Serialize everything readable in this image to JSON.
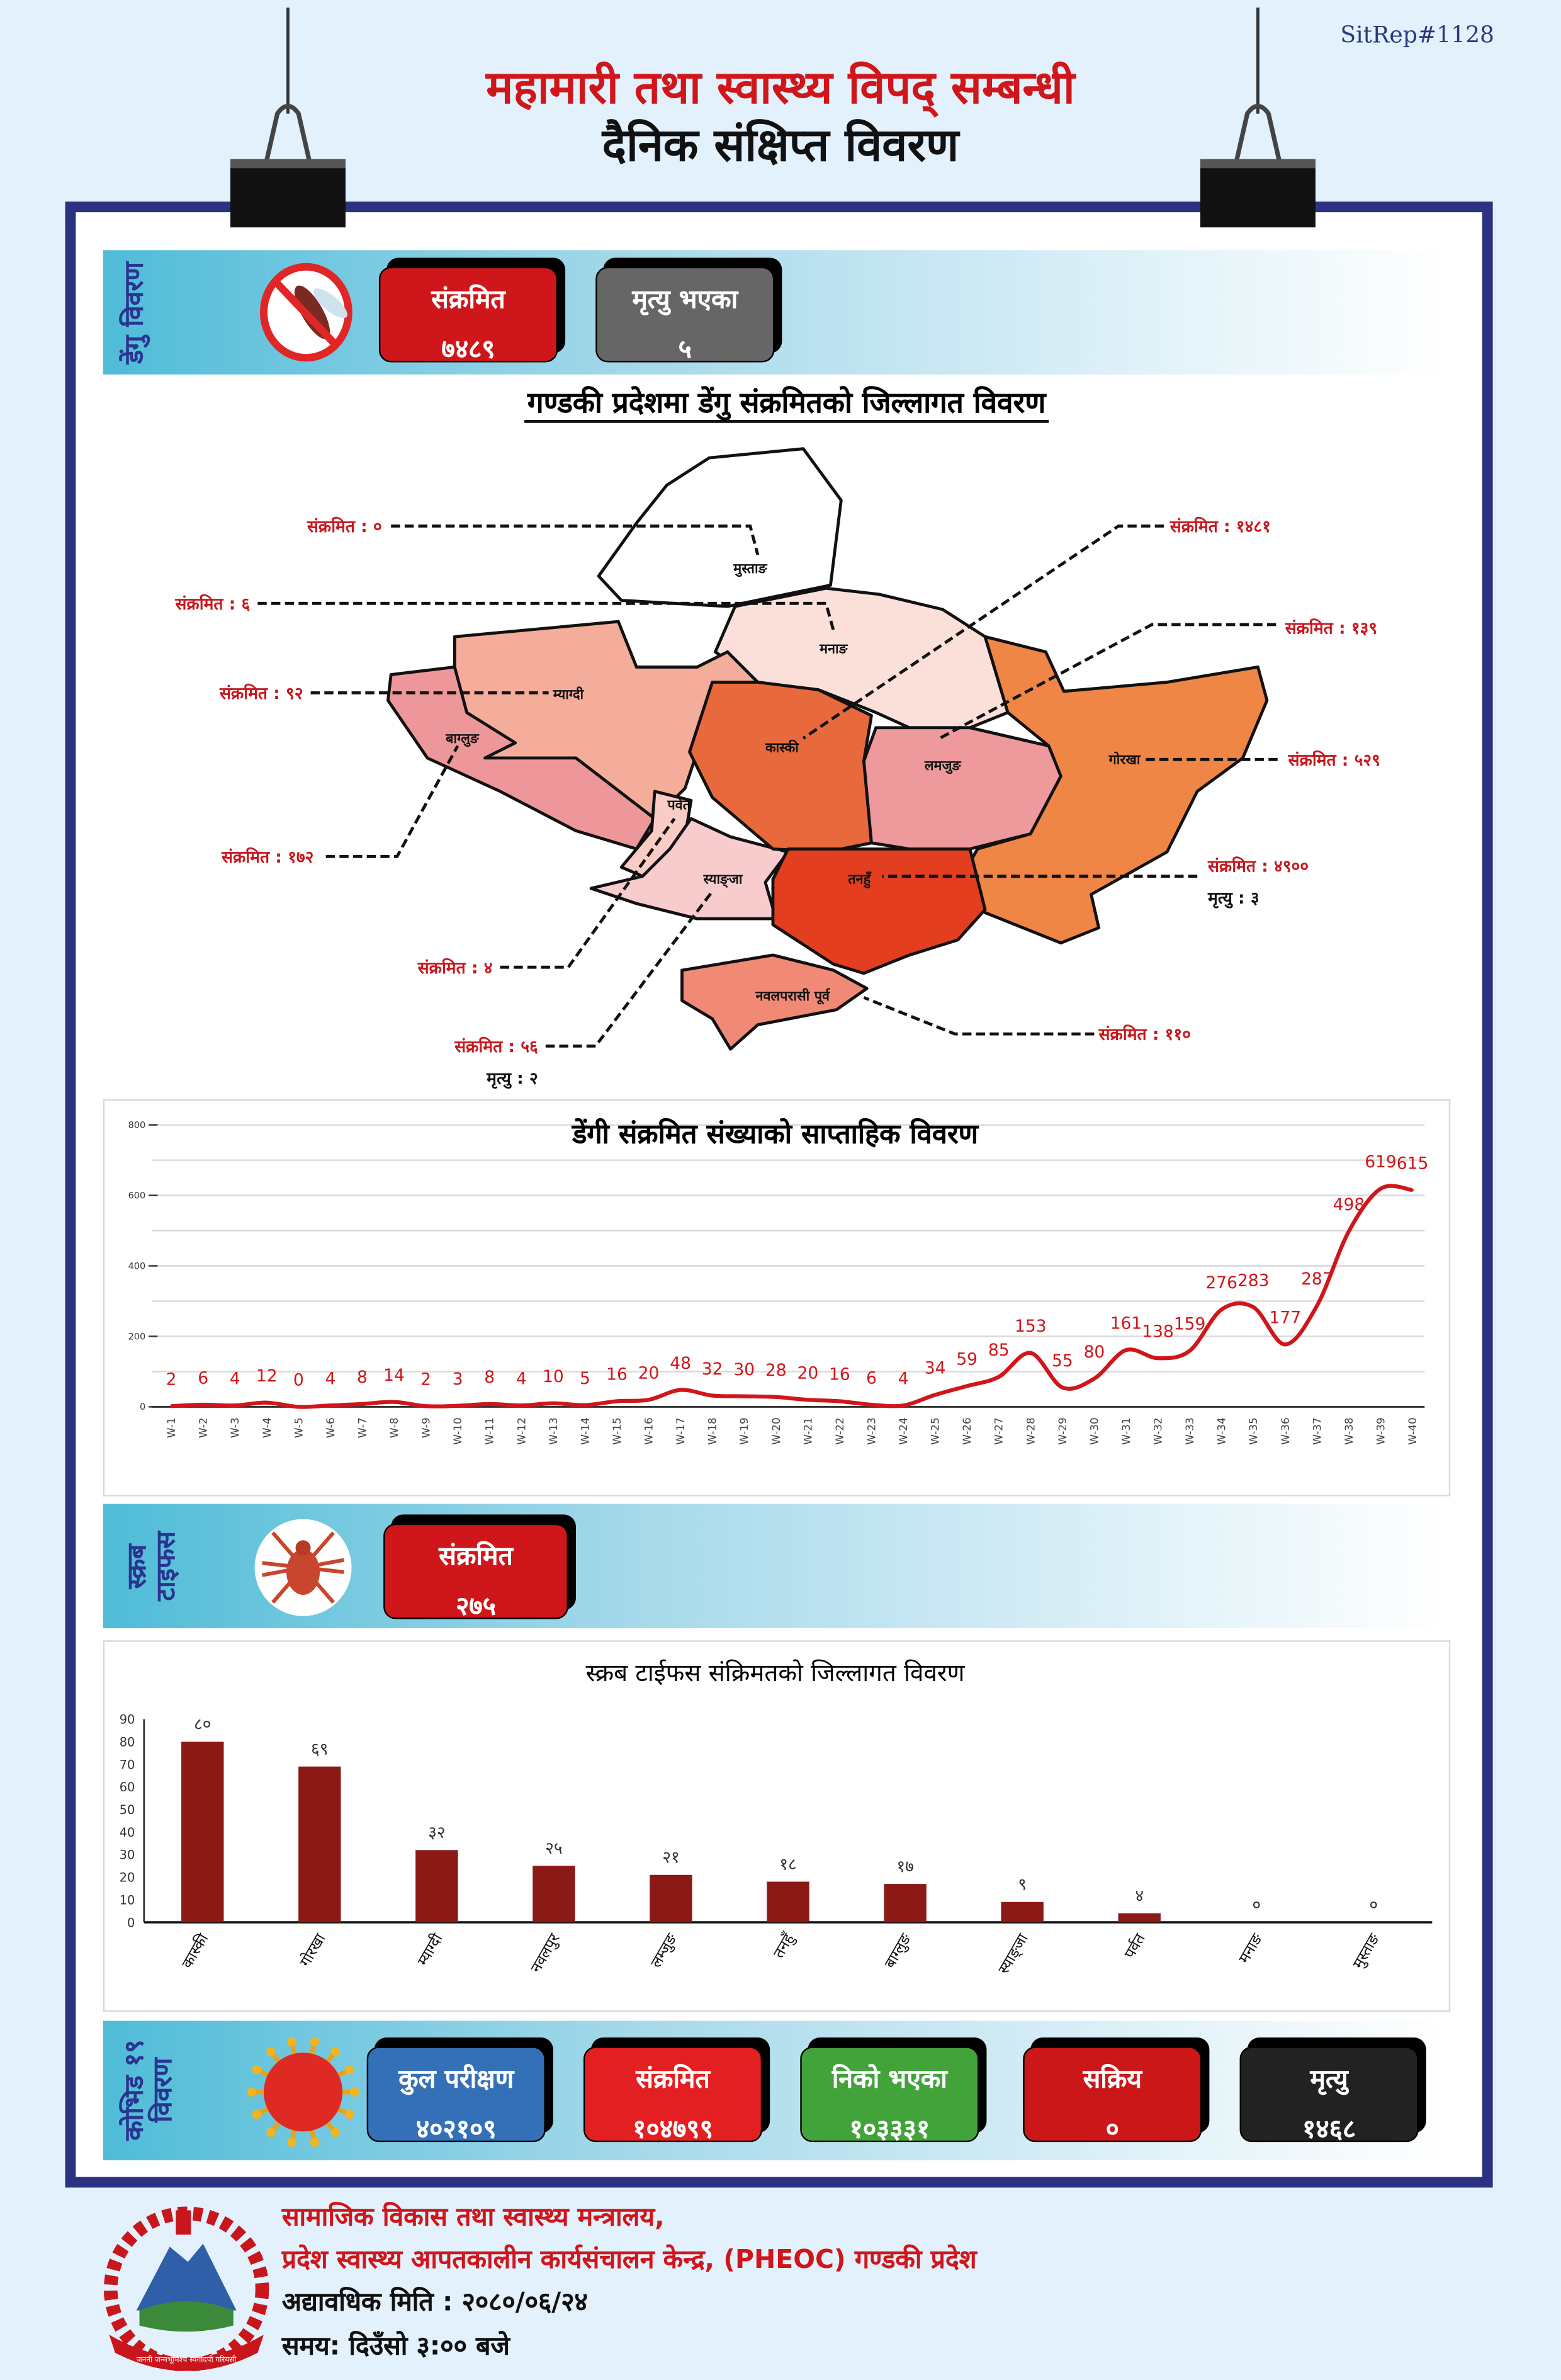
{
  "header": {
    "sitrep": "SitRep#1128",
    "title_line1": "महामारी तथा स्वास्थ्य विपद् सम्बन्धी",
    "title_line2": "दैनिक संक्षिप्त विवरण"
  },
  "dengue": {
    "band_label": "डेंगु विवरण",
    "icon": "mosquito-no-icon",
    "cards": [
      {
        "label": "संक्रमित",
        "value": "७४८९",
        "color": "#cf161b"
      },
      {
        "label": "मृत्यु भएका",
        "value": "५",
        "color": "#666666"
      }
    ],
    "map_title": "गण्डकी प्रदेशमा डेंगु संक्रमितको जिल्लागत विवरण",
    "districts": [
      {
        "name": "मुस्ताङ",
        "infected": "संक्रमित : ०",
        "color": "#ffffff"
      },
      {
        "name": "मनाङ",
        "infected": "संक्रमित : ६",
        "color": "#fbe0da"
      },
      {
        "name": "म्याग्दी",
        "infected": "संक्रमित : ९२",
        "color": "#f4ad9b"
      },
      {
        "name": "बाग्लुङ",
        "infected": "संक्रमित : १७२",
        "color": "#ee979a"
      },
      {
        "name": "पर्वत",
        "infected": "संक्रमित : ४",
        "color": "#f9cdc6"
      },
      {
        "name": "स्याङ्जा",
        "infected": "संक्रमित : ५६",
        "deaths": "मृत्यु : २",
        "color": "#f8cbcc"
      },
      {
        "name": "कास्की",
        "infected": "संक्रमित : १४८१",
        "color": "#e8693b"
      },
      {
        "name": "लमजुङ",
        "infected": "संक्रमित : १३९",
        "color": "#ee999c"
      },
      {
        "name": "गोरखा",
        "infected": "संक्रमित : ५२९",
        "color": "#ef8645"
      },
      {
        "name": "तनहुँ",
        "infected": "संक्रमित : ४९००",
        "deaths": "मृत्यु : ३",
        "color": "#e23e1f"
      },
      {
        "name": "नवलपरासी पूर्व",
        "infected": "संक्रमित : ११०",
        "color": "#f08a76"
      }
    ]
  },
  "chart_data": [
    {
      "type": "line",
      "title": "डेंगी संक्रमित संख्याको साप्ताहिक विवरण",
      "ylim": [
        0,
        800
      ],
      "yticks": [
        0,
        200,
        400,
        600,
        800
      ],
      "grid": true,
      "color": "#d0161b",
      "categories": [
        "W-1",
        "W-2",
        "W-3",
        "W-4",
        "W-5",
        "W-6",
        "W-7",
        "W-8",
        "W-9",
        "W-10",
        "W-11",
        "W-12",
        "W-13",
        "W-14",
        "W-15",
        "W-16",
        "W-17",
        "W-18",
        "W-19",
        "W-20",
        "W-21",
        "W-22",
        "W-23",
        "W-24",
        "W-25",
        "W-26",
        "W-27",
        "W-28",
        "W-29",
        "W-30",
        "W-31",
        "W-32",
        "W-33",
        "W-34",
        "W-35",
        "W-36",
        "W-37",
        "W-38",
        "W-39",
        "W-40"
      ],
      "values": [
        2,
        6,
        4,
        12,
        0,
        4,
        8,
        14,
        2,
        3,
        8,
        4,
        10,
        5,
        16,
        20,
        48,
        32,
        30,
        28,
        20,
        16,
        6,
        4,
        34,
        59,
        85,
        153,
        55,
        80,
        161,
        138,
        159,
        276,
        283,
        177,
        287,
        498,
        619,
        615
      ]
    },
    {
      "type": "bar",
      "title": "स्क्रब टाईफस संक्रिमतको जिल्लागत विवरण",
      "ylim": [
        0,
        90
      ],
      "yticks": [
        0,
        10,
        20,
        30,
        40,
        50,
        60,
        70,
        80,
        90
      ],
      "color": "#8b1a16",
      "categories": [
        "कास्की",
        "गोरखा",
        "म्याग्दी",
        "नवलपुर",
        "लम्जुङ",
        "तनहुँ",
        "बाग्लुङ",
        "स्याङ्जा",
        "पर्वत",
        "मनाङ",
        "मुस्ताङ"
      ],
      "values": [
        80,
        69,
        32,
        25,
        21,
        18,
        17,
        9,
        4,
        0,
        0
      ],
      "value_labels": [
        "८०",
        "६९",
        "३२",
        "२५",
        "२१",
        "१८",
        "१७",
        "९",
        "४",
        "०",
        "०"
      ]
    }
  ],
  "scrub": {
    "band_label": "स्क्रब टाइफस",
    "icon": "mite-icon",
    "card": {
      "label": "संक्रमित",
      "value": "२७५",
      "color": "#cf161b"
    }
  },
  "covid": {
    "band_label": "कोभिड १९ विवरण",
    "icon": "virus-icon",
    "cards": [
      {
        "label": "कुल परीक्षण",
        "value": "४०२१०९",
        "color": "#3470b8"
      },
      {
        "label": "संक्रमित",
        "value": "१०४७९९",
        "color": "#e31f21"
      },
      {
        "label": "निको भएका",
        "value": "१०३३३१",
        "color": "#42a33a"
      },
      {
        "label": "सक्रिय",
        "value": "०",
        "color": "#cc1719"
      },
      {
        "label": "मृत्यु",
        "value": "१४६८",
        "color": "#222222"
      }
    ]
  },
  "footer": {
    "line1": "सामाजिक विकास तथा स्वास्थ्य मन्त्रालय,",
    "line2": "प्रदेश स्वास्थ्य आपतकालीन कार्यसंचालन केन्द्र, (PHEOC) गण्डकी प्रदेश",
    "line3": "अद्यावधिक मिति : २०८०/०६/२४",
    "line4": "समय: दिउँसो ३:०० बजे",
    "emblem_text": "जननी जन्मभूमिश्च स्वर्गादपी गरियसी"
  }
}
